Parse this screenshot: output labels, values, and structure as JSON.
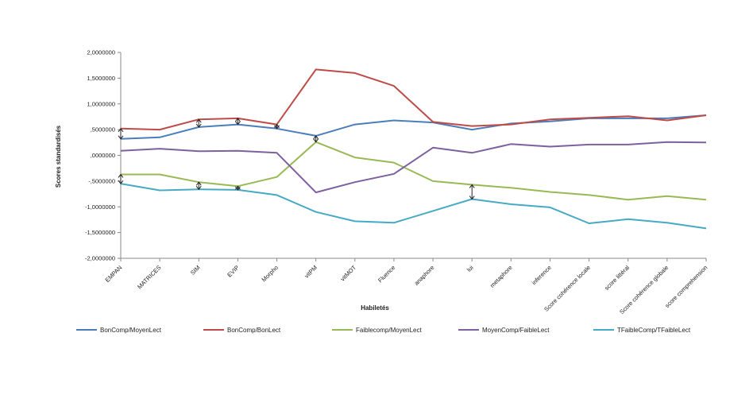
{
  "chart_data": {
    "type": "line",
    "title": "",
    "xlabel": "Habiletés",
    "ylabel": "Scores standardisés",
    "ylim": [
      -2,
      2
    ],
    "y_ticks": [
      2,
      1.5,
      1,
      0.5,
      0,
      -0.5,
      -1,
      -1.5,
      -2
    ],
    "y_tick_labels": [
      "2,0000000",
      "1,5000000",
      "1,0000000",
      ",5000000",
      ",0000000",
      "-,5000000",
      "-1,0000000",
      "-1,5000000",
      "-2,0000000"
    ],
    "categories": [
      "EMPAN",
      "MATRICES",
      "SIM",
      "EVIP",
      "Morpho",
      "vitPM",
      "vitMOT",
      "Fluence",
      "anaphore",
      "lui",
      "metaphore",
      "inference",
      "Score cohérence locale",
      "score littéral",
      "Score cohérence globale",
      "score comprehension"
    ],
    "grid": false,
    "legend_position": "bottom",
    "series": [
      {
        "name": "BonComp/MoyenLect",
        "color": "#4a7ebb",
        "values": [
          0.32,
          0.35,
          0.55,
          0.6,
          0.52,
          0.38,
          0.6,
          0.68,
          0.64,
          0.5,
          0.62,
          0.66,
          0.72,
          0.72,
          0.72,
          0.78
        ]
      },
      {
        "name": "BonComp/BonLect",
        "color": "#be4b48",
        "values": [
          0.52,
          0.5,
          0.7,
          0.72,
          0.6,
          1.67,
          1.6,
          1.35,
          0.65,
          0.57,
          0.6,
          0.7,
          0.73,
          0.76,
          0.68,
          0.78
        ]
      },
      {
        "name": "Faiblecomp/MoyenLect",
        "color": "#98b954",
        "values": [
          -0.37,
          -0.37,
          -0.52,
          -0.6,
          -0.42,
          0.26,
          -0.04,
          -0.14,
          -0.5,
          -0.57,
          -0.63,
          -0.71,
          -0.77,
          -0.86,
          -0.79,
          -0.86
        ]
      },
      {
        "name": "MoyenComp/FaibleLect",
        "color": "#7d60a0",
        "values": [
          0.09,
          0.13,
          0.08,
          0.09,
          0.05,
          -0.72,
          -0.52,
          -0.36,
          0.15,
          0.05,
          0.22,
          0.17,
          0.21,
          0.21,
          0.26,
          0.25
        ]
      },
      {
        "name": "TFaibleComp/TFaibleLect",
        "color": "#46aac5",
        "values": [
          -0.55,
          -0.68,
          -0.66,
          -0.67,
          -0.77,
          -1.1,
          -1.28,
          -1.31,
          -1.08,
          -0.85,
          -0.95,
          -1.01,
          -1.32,
          -1.24,
          -1.31,
          -1.42
        ]
      }
    ]
  }
}
